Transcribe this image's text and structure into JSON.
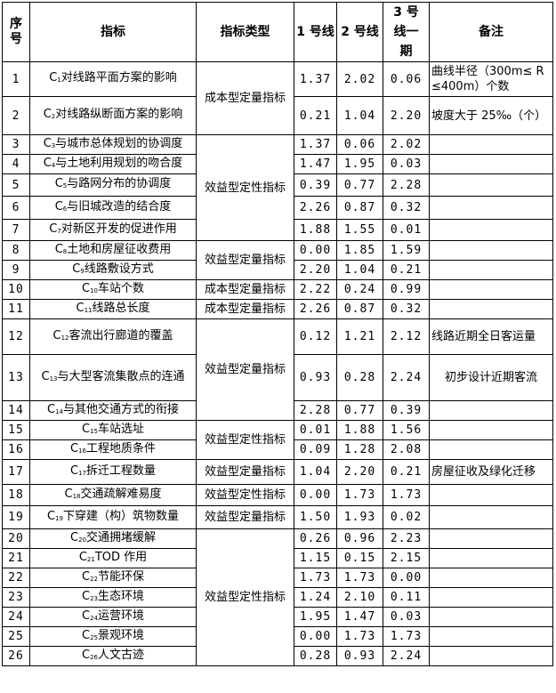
{
  "headers": [
    "序号",
    "指标",
    "指标类型",
    "1 号线",
    "2 号线",
    "3 号线一期",
    "备注"
  ],
  "rows": [
    {
      "no": "1",
      "c": "1",
      "name": "对线路平面方案的影响",
      "type": "成本型定量指标",
      "v": [
        "1.37",
        "2.02",
        "0.06"
      ],
      "note": "曲线半径（300m≤ R ≤400m）个数"
    },
    {
      "no": "2",
      "c": "2",
      "name": "对线路纵断面方案的影响",
      "v": [
        "0.21",
        "1.04",
        "2.20"
      ],
      "note": "坡度大于 25‰（个）"
    },
    {
      "no": "3",
      "c": "3",
      "name": "与城市总体规划的协调度",
      "type": "效益型定性指标",
      "v": [
        "1.37",
        "0.06",
        "2.02"
      ],
      "note": ""
    },
    {
      "no": "4",
      "c": "4",
      "name": "与土地利用规划的吻合度",
      "v": [
        "1.47",
        "1.95",
        "0.03"
      ],
      "note": ""
    },
    {
      "no": "5",
      "c": "5",
      "name": "与路网分布的协调度",
      "v": [
        "0.39",
        "0.77",
        "2.28"
      ],
      "note": ""
    },
    {
      "no": "6",
      "c": "6",
      "name": "与旧城改造的结合度",
      "v": [
        "2.26",
        "0.87",
        "0.32"
      ],
      "note": ""
    },
    {
      "no": "7",
      "c": "7",
      "name": "对新区开发的促进作用",
      "v": [
        "1.88",
        "1.55",
        "0.01"
      ],
      "note": ""
    },
    {
      "no": "8",
      "c": "8",
      "name": "土地和房屋征收费用",
      "type": "效益型定量指标",
      "v": [
        "0.00",
        "1.85",
        "1.59"
      ],
      "note": ""
    },
    {
      "no": "9",
      "c": "9",
      "name": "线路敷设方式",
      "v": [
        "2.20",
        "1.04",
        "0.21"
      ],
      "note": ""
    },
    {
      "no": "10",
      "c": "10",
      "name": "车站个数",
      "type": "成本型定量指标",
      "v": [
        "2.22",
        "0.24",
        "0.99"
      ],
      "note": ""
    },
    {
      "no": "11",
      "c": "11",
      "name": "线路总长度",
      "type": "成本型定量指标",
      "v": [
        "2.26",
        "0.87",
        "0.32"
      ],
      "note": ""
    },
    {
      "no": "12",
      "c": "12",
      "name": "客流出行廊道的覆盖",
      "type": "效益型定量指标",
      "v": [
        "0.12",
        "1.21",
        "2.12"
      ],
      "note": "线路近期全日客运量"
    },
    {
      "no": "13",
      "c": "13",
      "name": "与大型客流集散点的连通",
      "v": [
        "0.93",
        "0.28",
        "2.24"
      ],
      "note": "初步设计近期客流"
    },
    {
      "no": "14",
      "c": "14",
      "name": "与其他交通方式的衔接",
      "v": [
        "2.28",
        "0.77",
        "0.39"
      ],
      "note": ""
    },
    {
      "no": "15",
      "c": "15",
      "name": "车站选址",
      "type": "效益型定性指标",
      "v": [
        "0.01",
        "1.88",
        "1.56"
      ],
      "note": ""
    },
    {
      "no": "16",
      "c": "16",
      "name": "工程地质条件",
      "v": [
        "0.09",
        "1.28",
        "2.08"
      ],
      "note": ""
    },
    {
      "no": "17",
      "c": "17",
      "name": "拆迁工程数量",
      "type": "效益型定量指标",
      "v": [
        "1.04",
        "2.20",
        "0.21"
      ],
      "note": "房屋征收及绿化迁移"
    },
    {
      "no": "18",
      "c": "18",
      "name": "交通疏解难易度",
      "type": "效益型定性指标",
      "v": [
        "0.00",
        "1.73",
        "1.73"
      ],
      "note": ""
    },
    {
      "no": "19",
      "c": "19",
      "name": "下穿建（构）筑物数量",
      "type": "效益型定量指标",
      "v": [
        "1.50",
        "1.93",
        "0.02"
      ],
      "note": ""
    },
    {
      "no": "20",
      "c": "20",
      "name": "交通拥堵缓解",
      "type": "效益型定性指标",
      "v": [
        "0.26",
        "0.96",
        "2.23"
      ],
      "note": ""
    },
    {
      "no": "21",
      "c": "21",
      "name": "TOD 作用",
      "v": [
        "1.15",
        "0.15",
        "2.15"
      ],
      "note": ""
    },
    {
      "no": "22",
      "c": "22",
      "name": "节能环保",
      "v": [
        "1.73",
        "1.73",
        "0.00"
      ],
      "note": ""
    },
    {
      "no": "23",
      "c": "23",
      "name": "生态环境",
      "v": [
        "1.24",
        "2.10",
        "0.11"
      ],
      "note": ""
    },
    {
      "no": "24",
      "c": "24",
      "name": "运营环境",
      "v": [
        "1.95",
        "1.47",
        "0.03"
      ],
      "note": ""
    },
    {
      "no": "25",
      "c": "25",
      "name": "景观环境",
      "v": [
        "0.00",
        "1.73",
        "1.73"
      ],
      "note": ""
    },
    {
      "no": "26",
      "c": "26",
      "name": "人文古迹",
      "v": [
        "0.28",
        "0.93",
        "2.24"
      ],
      "note": ""
    }
  ]
}
